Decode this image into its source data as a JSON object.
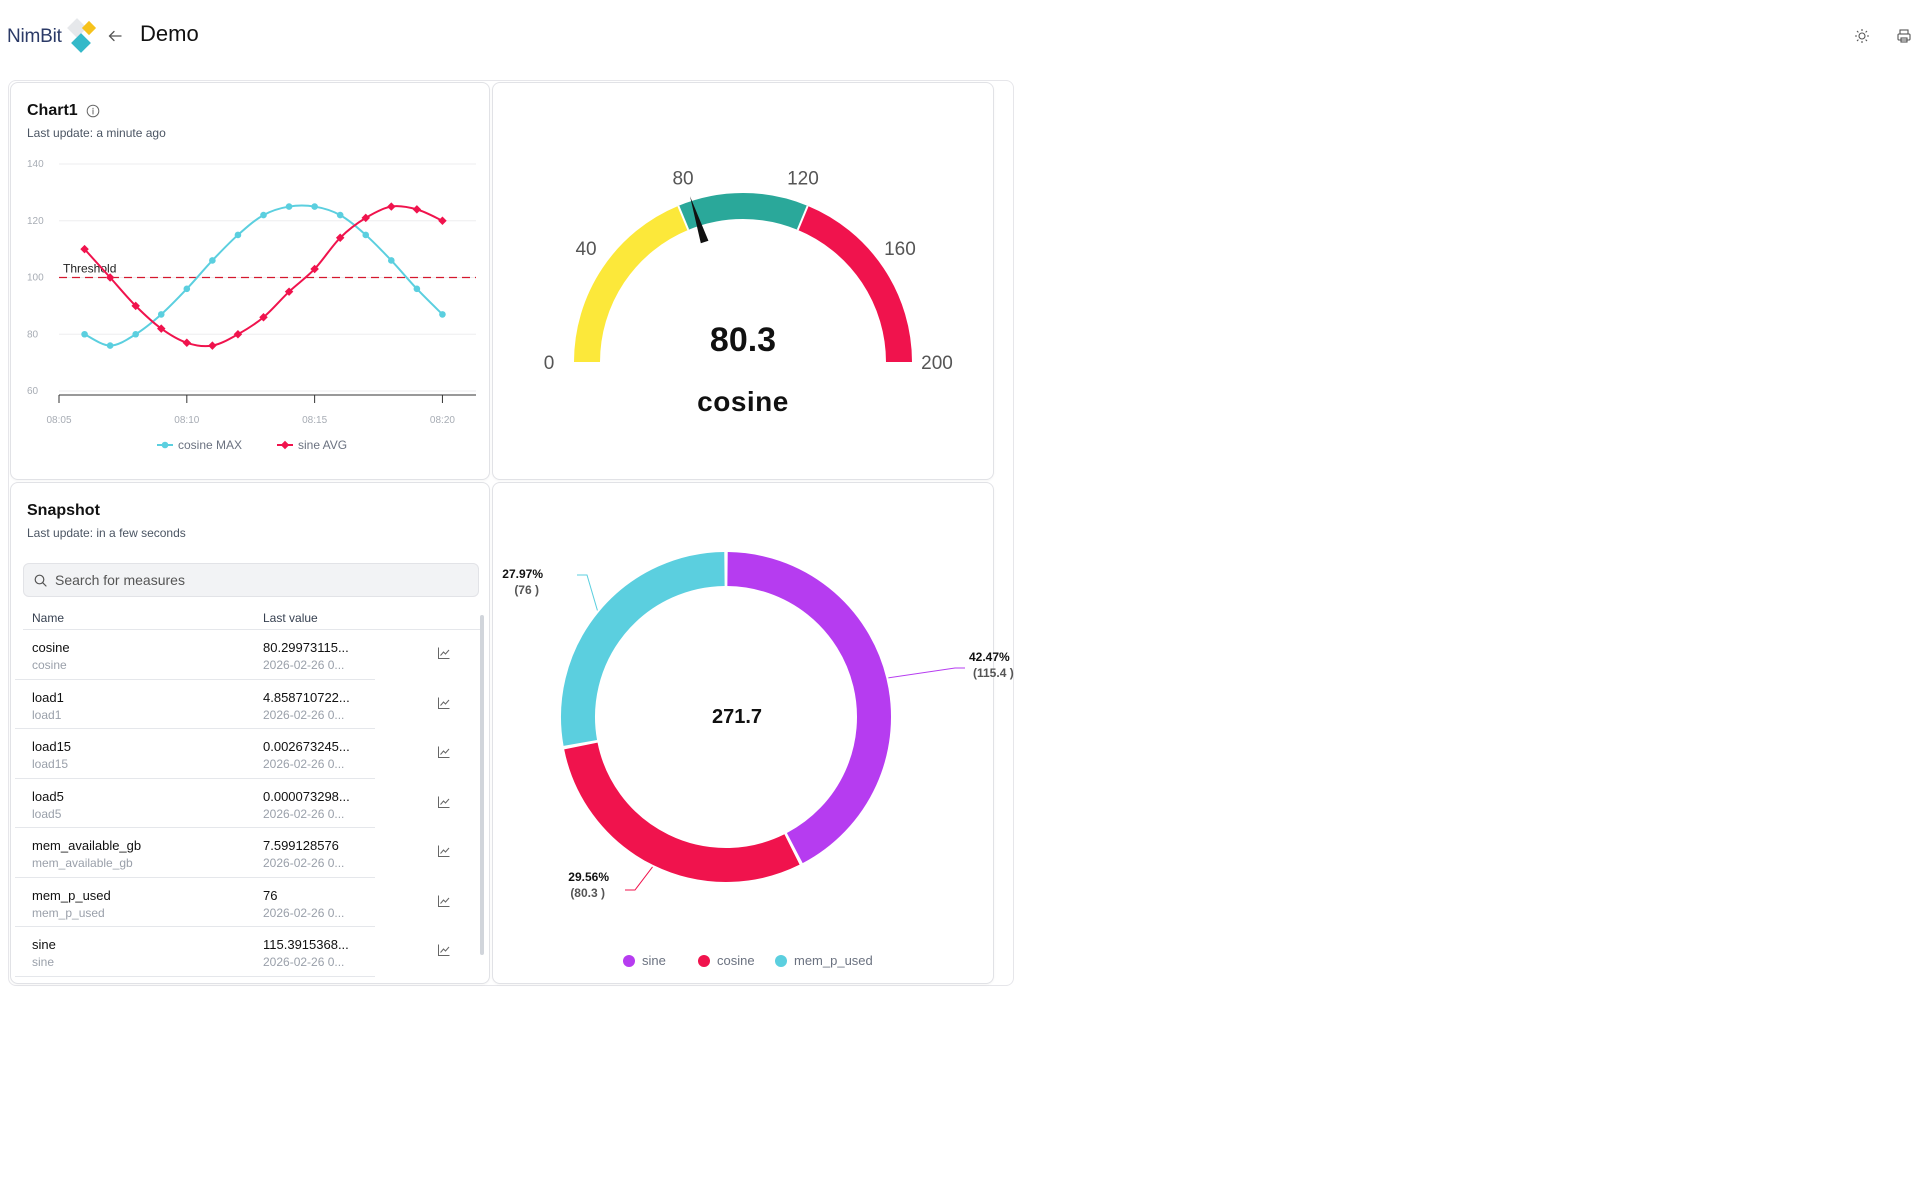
{
  "app": {
    "brand": "NimBit",
    "page_title": "Demo"
  },
  "chart_card": {
    "title": "Chart1",
    "subtitle": "Last update: a minute ago"
  },
  "chart_data": {
    "type": "line",
    "x": [
      "08:06",
      "08:07",
      "08:08",
      "08:09",
      "08:10",
      "08:11",
      "08:12",
      "08:13",
      "08:14",
      "08:15",
      "08:16",
      "08:17",
      "08:18",
      "08:19",
      "08:20"
    ],
    "x_ticks": [
      "08:05",
      "08:10",
      "08:15",
      "08:20"
    ],
    "ylim": [
      60,
      140
    ],
    "y_ticks": [
      "140",
      "120",
      "100",
      "80",
      "60"
    ],
    "grid": true,
    "legend": "bottom",
    "series": [
      {
        "name": "cosine MAX",
        "color": "#5bcfdf",
        "values": [
          80,
          76,
          80,
          87,
          96,
          106,
          115,
          122,
          125,
          125,
          122,
          115,
          106,
          96,
          87
        ]
      },
      {
        "name": "sine AVG",
        "color": "#f0134d",
        "values": [
          110,
          100,
          90,
          82,
          77,
          76,
          80,
          86,
          95,
          103,
          114,
          121,
          125,
          124,
          120
        ]
      }
    ],
    "threshold": {
      "label": "Threshold",
      "value": 100,
      "color": "#d4182e"
    }
  },
  "gauge_card": {
    "value": "80.3",
    "label": "cosine",
    "numeric_value": 80.3,
    "min": 0,
    "max": 200,
    "ticks": [
      "0",
      "40",
      "80",
      "120",
      "160",
      "200"
    ],
    "bands": [
      {
        "from": 0,
        "to": 75,
        "color": "#fce83a"
      },
      {
        "from": 75,
        "to": 125,
        "color": "#2aa89a"
      },
      {
        "from": 125,
        "to": 200,
        "color": "#f0134d"
      }
    ]
  },
  "snapshot": {
    "title": "Snapshot",
    "subtitle": "Last update: in a few seconds",
    "search_placeholder": "Search for measures",
    "col_name": "Name",
    "col_value": "Last value",
    "rows": [
      {
        "name": "cosine",
        "sub": "cosine",
        "value": "80.29973115...",
        "date": "2026-02-26 0..."
      },
      {
        "name": "load1",
        "sub": "load1",
        "value": "4.858710722...",
        "date": "2026-02-26 0..."
      },
      {
        "name": "load15",
        "sub": "load15",
        "value": "0.002673245...",
        "date": "2026-02-26 0..."
      },
      {
        "name": "load5",
        "sub": "load5",
        "value": "0.000073298...",
        "date": "2026-02-26 0..."
      },
      {
        "name": "mem_available_gb",
        "sub": "mem_available_gb",
        "value": "7.599128576",
        "date": "2026-02-26 0..."
      },
      {
        "name": "mem_p_used",
        "sub": "mem_p_used",
        "value": "76",
        "date": "2026-02-26 0..."
      },
      {
        "name": "sine",
        "sub": "sine",
        "value": "115.3915368...",
        "date": "2026-02-26 0..."
      }
    ]
  },
  "donut": {
    "total": "271.7",
    "legend_position": "bottom",
    "slices": [
      {
        "name": "sine",
        "value": 115.4,
        "percent": "42.47%",
        "value_label": "(115.4 )",
        "color": "#b63cf0"
      },
      {
        "name": "cosine",
        "value": 80.3,
        "percent": "29.56%",
        "value_label": "(80.3 )",
        "color": "#f0134d"
      },
      {
        "name": "mem_p_used",
        "value": 76,
        "percent": "27.97%",
        "value_label": "(76 )",
        "color": "#5bcfdf"
      }
    ]
  }
}
